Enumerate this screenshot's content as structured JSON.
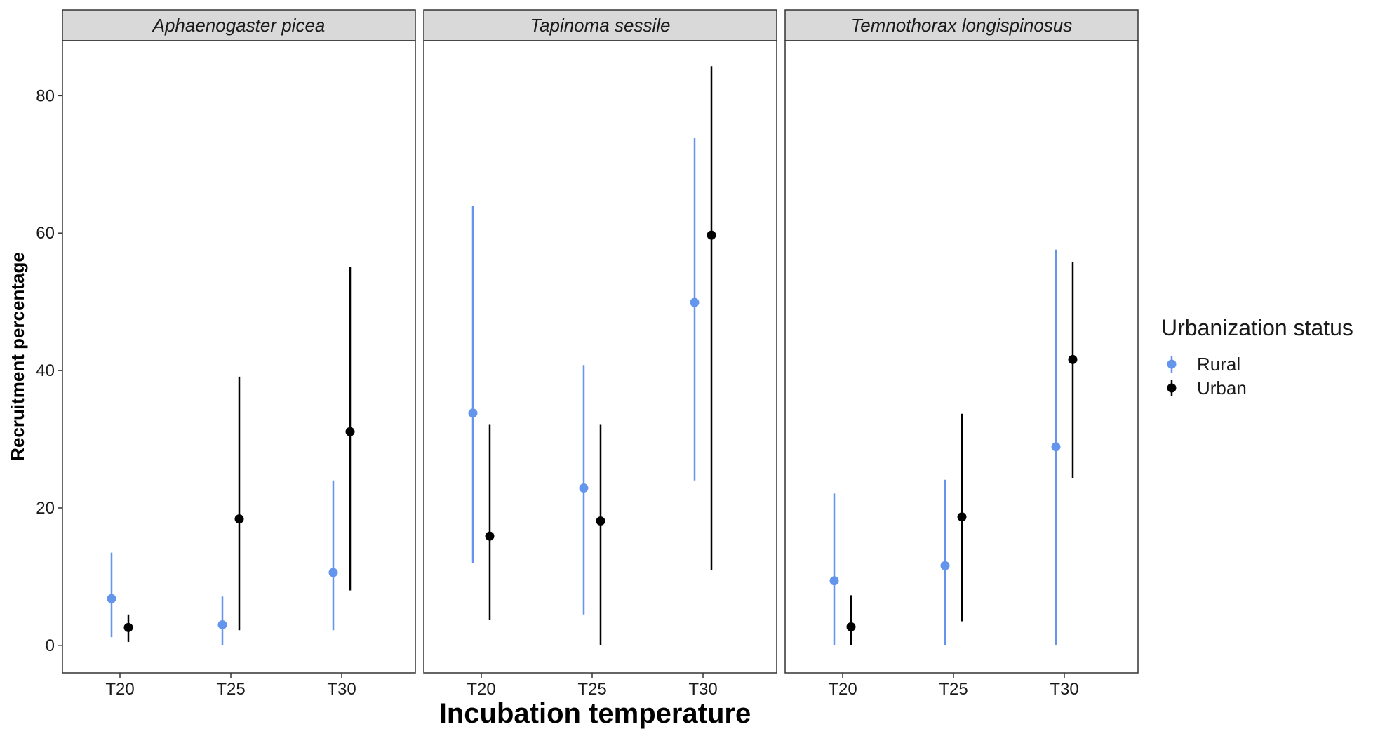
{
  "chart_data": {
    "type": "scatter",
    "subtype": "point-with-error-bars, faceted",
    "xlabel": "Incubation temperature",
    "ylabel": "Recruitment percentage",
    "categories": [
      "T20",
      "T25",
      "T30"
    ],
    "ylim": [
      -4,
      88
    ],
    "yticks": [
      0,
      20,
      40,
      60,
      80
    ],
    "grid": false,
    "legend": {
      "title": "Urbanization status",
      "placement": "right",
      "entries": [
        {
          "name": "Rural",
          "color": "#6495ED"
        },
        {
          "name": "Urban",
          "color": "#000000"
        }
      ]
    },
    "facets": [
      {
        "title": "Aphaenogaster picea",
        "series": [
          {
            "name": "Rural",
            "color": "#6495ED",
            "values": [
              6.8,
              3.0,
              10.6
            ],
            "lower": [
              1.2,
              0.0,
              2.2
            ],
            "upper": [
              13.5,
              7.1,
              24.0
            ]
          },
          {
            "name": "Urban",
            "color": "#000000",
            "values": [
              2.6,
              18.4,
              31.1
            ],
            "lower": [
              0.5,
              2.2,
              8.0
            ],
            "upper": [
              4.5,
              39.1,
              55.1
            ]
          }
        ]
      },
      {
        "title": "Tapinoma sessile",
        "series": [
          {
            "name": "Rural",
            "color": "#6495ED",
            "values": [
              33.8,
              22.9,
              49.9
            ],
            "lower": [
              12.0,
              4.5,
              24.0
            ],
            "upper": [
              64.0,
              40.8,
              73.8
            ]
          },
          {
            "name": "Urban",
            "color": "#000000",
            "values": [
              15.9,
              18.1,
              59.7
            ],
            "lower": [
              3.7,
              0.0,
              11.0
            ],
            "upper": [
              32.1,
              32.1,
              84.3
            ]
          }
        ]
      },
      {
        "title": "Temnothorax longispinosus",
        "series": [
          {
            "name": "Rural",
            "color": "#6495ED",
            "values": [
              9.4,
              11.6,
              28.9
            ],
            "lower": [
              0.0,
              0.0,
              0.0
            ],
            "upper": [
              22.1,
              24.1,
              57.6
            ]
          },
          {
            "name": "Urban",
            "color": "#000000",
            "values": [
              2.7,
              18.7,
              41.6
            ],
            "lower": [
              0.0,
              3.5,
              24.3
            ],
            "upper": [
              7.3,
              33.7,
              55.8
            ]
          }
        ]
      }
    ]
  }
}
